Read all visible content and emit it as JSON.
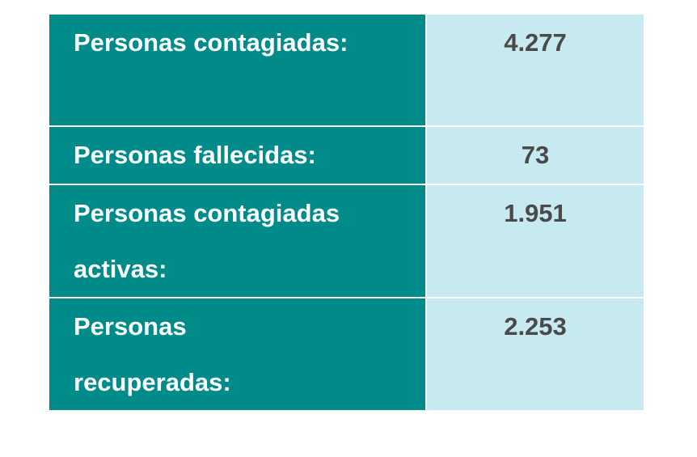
{
  "rows": [
    {
      "label": "Personas contagiadas:",
      "value": "4.277"
    },
    {
      "label": "Personas fallecidas:",
      "value": "73"
    },
    {
      "label": "Personas contagiadas activas:",
      "value": "1.951"
    },
    {
      "label": "Personas recuperadas:",
      "value": "2.253"
    }
  ],
  "colors": {
    "label_background": "#008b8b",
    "label_text": "#ffffff",
    "value_background": "#c6eaf0",
    "value_text": "#4a4a4a"
  }
}
